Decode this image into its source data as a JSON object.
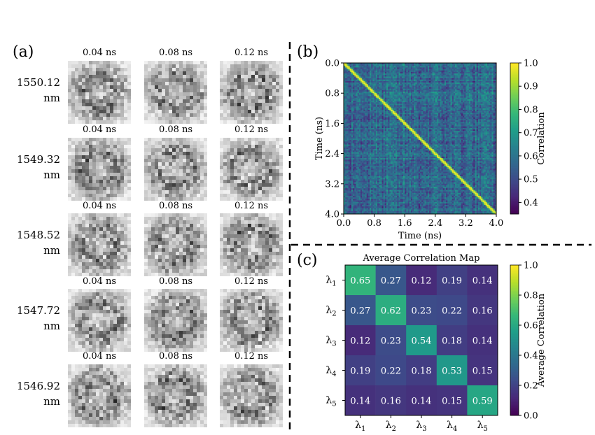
{
  "panel_labels": {
    "a": "(a)",
    "b": "(b)",
    "c": "(c)"
  },
  "panel_a": {
    "time_labels": [
      "0.04 ns",
      "0.08 ns",
      "0.12 ns"
    ],
    "rows": [
      {
        "wl": "1550.12",
        "unit": "nm"
      },
      {
        "wl": "1549.32",
        "unit": "nm"
      },
      {
        "wl": "1548.52",
        "unit": "nm"
      },
      {
        "wl": "1547.72",
        "unit": "nm"
      },
      {
        "wl": "1546.92",
        "unit": "nm"
      }
    ]
  },
  "chart_data": [
    {
      "type": "heatmap",
      "panel": "(b)",
      "title": "",
      "xlabel": "Time (ns)",
      "ylabel": "Time (ns)",
      "xlim": [
        0.0,
        4.0
      ],
      "ylim": [
        0.0,
        4.0
      ],
      "y_inverted": true,
      "xticks": [
        "0.0",
        "0.8",
        "1.6",
        "2.4",
        "3.2",
        "4.0"
      ],
      "yticks": [
        "0.0",
        "0.8",
        "1.6",
        "2.4",
        "3.2",
        "4.0"
      ],
      "grid_size": 100,
      "description_values": {
        "diagonal": 1.0,
        "off_diagonal_range": [
          0.35,
          0.75
        ]
      },
      "colorbar": {
        "label": "Correlation",
        "range": [
          0.35,
          1.0
        ],
        "ticks": [
          "0.4",
          "0.5",
          "0.6",
          "0.7",
          "0.8",
          "0.9",
          "1.0"
        ],
        "tick_values": [
          0.4,
          0.5,
          0.6,
          0.7,
          0.8,
          0.9,
          1.0
        ],
        "colormap": "viridis"
      }
    },
    {
      "type": "heatmap",
      "panel": "(c)",
      "title": "Average Correlation Map",
      "x_categories": [
        "λ1",
        "λ2",
        "λ3",
        "λ4",
        "λ5"
      ],
      "y_categories": [
        "λ1",
        "λ2",
        "λ3",
        "λ4",
        "λ5"
      ],
      "values": [
        [
          0.65,
          0.27,
          0.12,
          0.19,
          0.14
        ],
        [
          0.27,
          0.62,
          0.23,
          0.22,
          0.16
        ],
        [
          0.12,
          0.23,
          0.54,
          0.18,
          0.14
        ],
        [
          0.19,
          0.22,
          0.18,
          0.53,
          0.15
        ],
        [
          0.14,
          0.16,
          0.14,
          0.15,
          0.59
        ]
      ],
      "colorbar": {
        "label": "Average Correlation",
        "range": [
          0.0,
          1.0
        ],
        "ticks": [
          "0.0",
          "0.2",
          "0.4",
          "0.6",
          "0.8",
          "1.0"
        ],
        "tick_values": [
          0.0,
          0.2,
          0.4,
          0.6,
          0.8,
          1.0
        ],
        "colormap": "viridis"
      }
    }
  ]
}
